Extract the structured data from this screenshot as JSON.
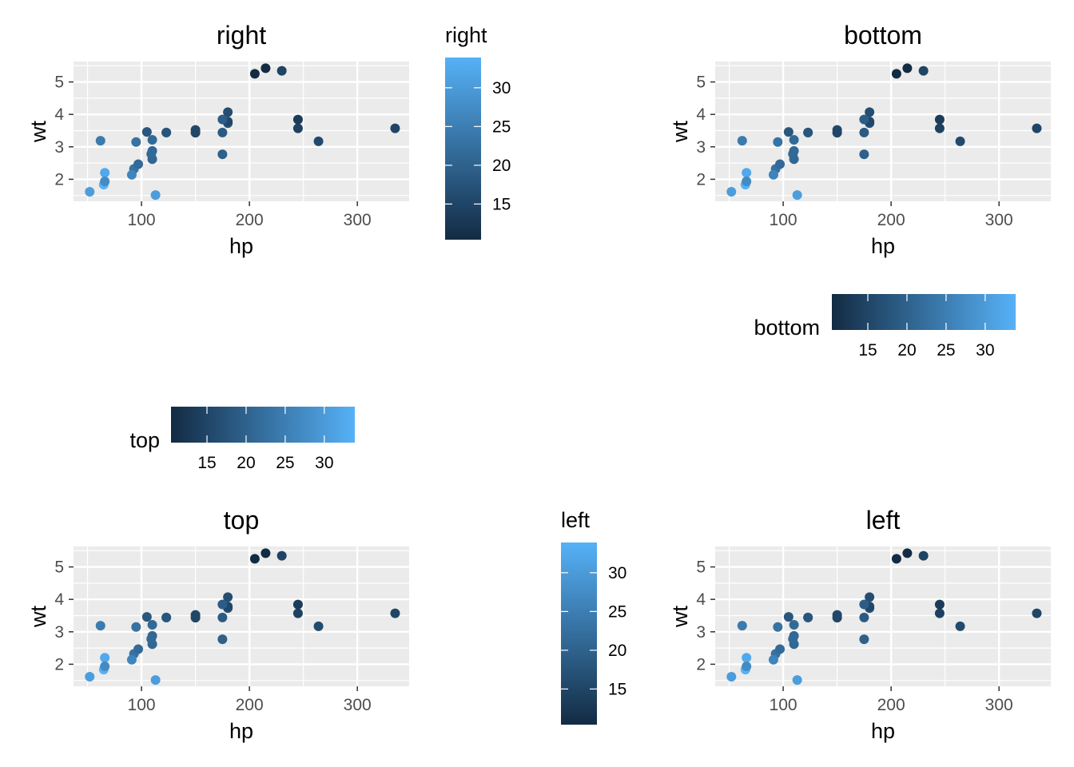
{
  "chart_data": {
    "type": "scatter",
    "panels": [
      {
        "title": "right",
        "legend_position": "right",
        "legend_title": "right"
      },
      {
        "title": "bottom",
        "legend_position": "bottom",
        "legend_title": "bottom"
      },
      {
        "title": "top",
        "legend_position": "top",
        "legend_title": "top"
      },
      {
        "title": "left",
        "legend_position": "left",
        "legend_title": "left"
      }
    ],
    "xlabel": "hp",
    "ylabel": "wt",
    "xlim": [
      37,
      348
    ],
    "ylim": [
      1.32,
      5.63
    ],
    "x_ticks": [
      100,
      200,
      300
    ],
    "y_ticks": [
      2,
      3,
      4,
      5
    ],
    "x_tick_labels": [
      "100",
      "200",
      "300"
    ],
    "y_tick_labels": [
      "2",
      "3",
      "4",
      "5"
    ],
    "color_scale": {
      "low_color": "#132B43",
      "high_color": "#56B1F7",
      "min": 10.4,
      "max": 33.9,
      "breaks": [
        15,
        20,
        25,
        30
      ],
      "break_labels": [
        "15",
        "20",
        "25",
        "30"
      ]
    },
    "grid": true,
    "panel_background": "#EBEBEB",
    "points": [
      {
        "x": 110,
        "y": 2.62,
        "c": 21.0
      },
      {
        "x": 110,
        "y": 2.875,
        "c": 21.0
      },
      {
        "x": 93,
        "y": 2.32,
        "c": 22.8
      },
      {
        "x": 110,
        "y": 3.215,
        "c": 21.4
      },
      {
        "x": 175,
        "y": 3.44,
        "c": 18.7
      },
      {
        "x": 105,
        "y": 3.46,
        "c": 18.1
      },
      {
        "x": 245,
        "y": 3.57,
        "c": 14.3
      },
      {
        "x": 62,
        "y": 3.19,
        "c": 24.4
      },
      {
        "x": 95,
        "y": 3.15,
        "c": 22.8
      },
      {
        "x": 123,
        "y": 3.44,
        "c": 19.2
      },
      {
        "x": 123,
        "y": 3.44,
        "c": 17.8
      },
      {
        "x": 180,
        "y": 4.07,
        "c": 16.4
      },
      {
        "x": 180,
        "y": 3.73,
        "c": 17.3
      },
      {
        "x": 180,
        "y": 3.78,
        "c": 15.2
      },
      {
        "x": 205,
        "y": 5.25,
        "c": 10.4
      },
      {
        "x": 215,
        "y": 5.424,
        "c": 10.4
      },
      {
        "x": 230,
        "y": 5.345,
        "c": 14.7
      },
      {
        "x": 66,
        "y": 2.2,
        "c": 32.4
      },
      {
        "x": 52,
        "y": 1.615,
        "c": 30.4
      },
      {
        "x": 65,
        "y": 1.835,
        "c": 33.9
      },
      {
        "x": 97,
        "y": 2.465,
        "c": 21.5
      },
      {
        "x": 150,
        "y": 3.52,
        "c": 15.5
      },
      {
        "x": 150,
        "y": 3.435,
        "c": 15.2
      },
      {
        "x": 245,
        "y": 3.84,
        "c": 13.3
      },
      {
        "x": 175,
        "y": 3.845,
        "c": 19.2
      },
      {
        "x": 66,
        "y": 1.935,
        "c": 27.3
      },
      {
        "x": 91,
        "y": 2.14,
        "c": 26.0
      },
      {
        "x": 113,
        "y": 1.513,
        "c": 30.4
      },
      {
        "x": 264,
        "y": 3.17,
        "c": 15.8
      },
      {
        "x": 175,
        "y": 2.77,
        "c": 19.7
      },
      {
        "x": 335,
        "y": 3.57,
        "c": 15.0
      },
      {
        "x": 109,
        "y": 2.78,
        "c": 21.4
      }
    ]
  }
}
